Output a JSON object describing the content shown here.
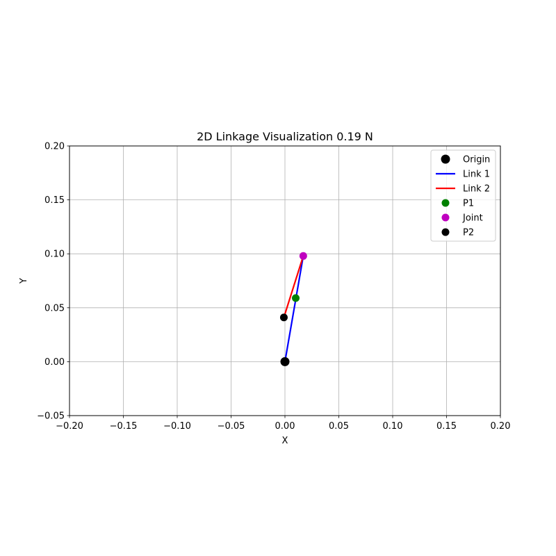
{
  "chart_data": {
    "type": "scatter",
    "title": "2D Linkage Visualization 0.19 N",
    "xlabel": "X",
    "ylabel": "Y",
    "xlim": [
      -0.2,
      0.2
    ],
    "ylim": [
      -0.05,
      0.2
    ],
    "xticks": [
      -0.2,
      -0.15,
      -0.1,
      -0.05,
      0.0,
      0.05,
      0.1,
      0.15,
      0.2
    ],
    "xtick_labels": [
      "−0.20",
      "−0.15",
      "−0.10",
      "−0.05",
      "0.00",
      "0.05",
      "0.10",
      "0.15",
      "0.20"
    ],
    "yticks": [
      -0.05,
      0.0,
      0.05,
      0.1,
      0.15,
      0.2
    ],
    "ytick_labels": [
      "−0.05",
      "0.00",
      "0.05",
      "0.10",
      "0.15",
      "0.20"
    ],
    "grid": true,
    "legend_position": "top-right",
    "series": [
      {
        "name": "Link 1",
        "kind": "line",
        "color": "#0000ff",
        "points": [
          [
            0.0,
            0.0
          ],
          [
            0.017,
            0.098
          ]
        ]
      },
      {
        "name": "Link 2",
        "kind": "line",
        "color": "#ff0000",
        "points": [
          [
            0.017,
            0.098
          ],
          [
            -0.001,
            0.041
          ]
        ]
      },
      {
        "name": "Origin",
        "kind": "point",
        "color": "#000000",
        "marker": "large",
        "points": [
          [
            0.0,
            0.0
          ]
        ]
      },
      {
        "name": "P1",
        "kind": "point",
        "color": "#008000",
        "marker": "medium",
        "points": [
          [
            0.01,
            0.059
          ]
        ]
      },
      {
        "name": "Joint",
        "kind": "point",
        "color": "#bf00bf",
        "marker": "medium",
        "points": [
          [
            0.017,
            0.098
          ]
        ]
      },
      {
        "name": "P2",
        "kind": "point",
        "color": "#000000",
        "marker": "medium",
        "points": [
          [
            -0.001,
            0.041
          ]
        ]
      }
    ],
    "legend_order": [
      "Origin",
      "Link 1",
      "Link 2",
      "P1",
      "Joint",
      "P2"
    ]
  }
}
